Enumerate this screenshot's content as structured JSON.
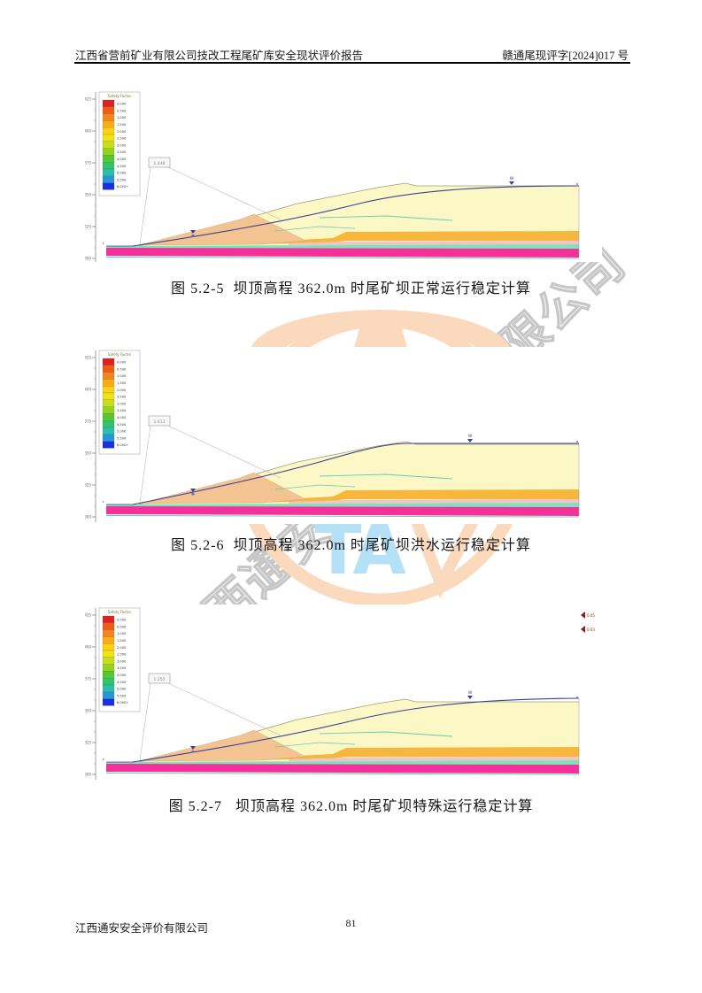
{
  "header": {
    "left": "江西省营前矿业有限公司技改工程尾矿库安全现状评价报告",
    "right": "赣通尾现评字[2024]017 号"
  },
  "footer": {
    "company": "江西通安安全评价有限公司",
    "page_number": "81"
  },
  "watermark": {
    "company_text": "江西通安安全评价有限公司",
    "monogram": "TA",
    "ring_color": "#fbd9bd",
    "monogram_color": "#b5e1f7",
    "text_color": "#c6c6c6"
  },
  "legend": {
    "title": "Safety Factor",
    "values": [
      "0.000",
      "0.500",
      "1.000",
      "1.500",
      "2.000",
      "2.500",
      "3.000",
      "3.500",
      "4.000",
      "4.500",
      "5.000",
      "5.500",
      "6.000+"
    ],
    "colors": [
      "#e01f1f",
      "#ef5c16",
      "#f5841c",
      "#fbab18",
      "#ffd20f",
      "#eee414",
      "#c6de1b",
      "#93d31f",
      "#55c72f",
      "#33c46b",
      "#2bc0ab",
      "#2597d8",
      "#1b2fe0"
    ]
  },
  "axis": {
    "ticks": [
      "425",
      "400",
      "375",
      "350",
      "325",
      "300"
    ]
  },
  "markers": {
    "water_table": "W"
  },
  "figures": [
    {
      "caption": "图 5.2-5  坝顶高程 362.0m 时尾矿坝正常运行稳定计算",
      "factor_label": "1.448"
    },
    {
      "caption": "图 5.2-6  坝顶高程 362.0m 时尾矿坝洪水运行稳定计算",
      "factor_label": "1.413"
    },
    {
      "caption": "图 5.2-7   坝顶高程 362.0m 时尾矿坝特殊运行稳定计算",
      "factor_label": "1.255",
      "seismic_labels": [
        "0.05",
        "0.03"
      ]
    }
  ],
  "section_colors": {
    "tailings_beach": "#fcf8c6",
    "starter_dam": "#f3c391",
    "drain_band": "#f6b73c",
    "silt_band": "#f2c3c8",
    "clay_band": "#7fe2bb",
    "base_band": "#f5309b",
    "phreatic_line": "#3b3f96"
  }
}
